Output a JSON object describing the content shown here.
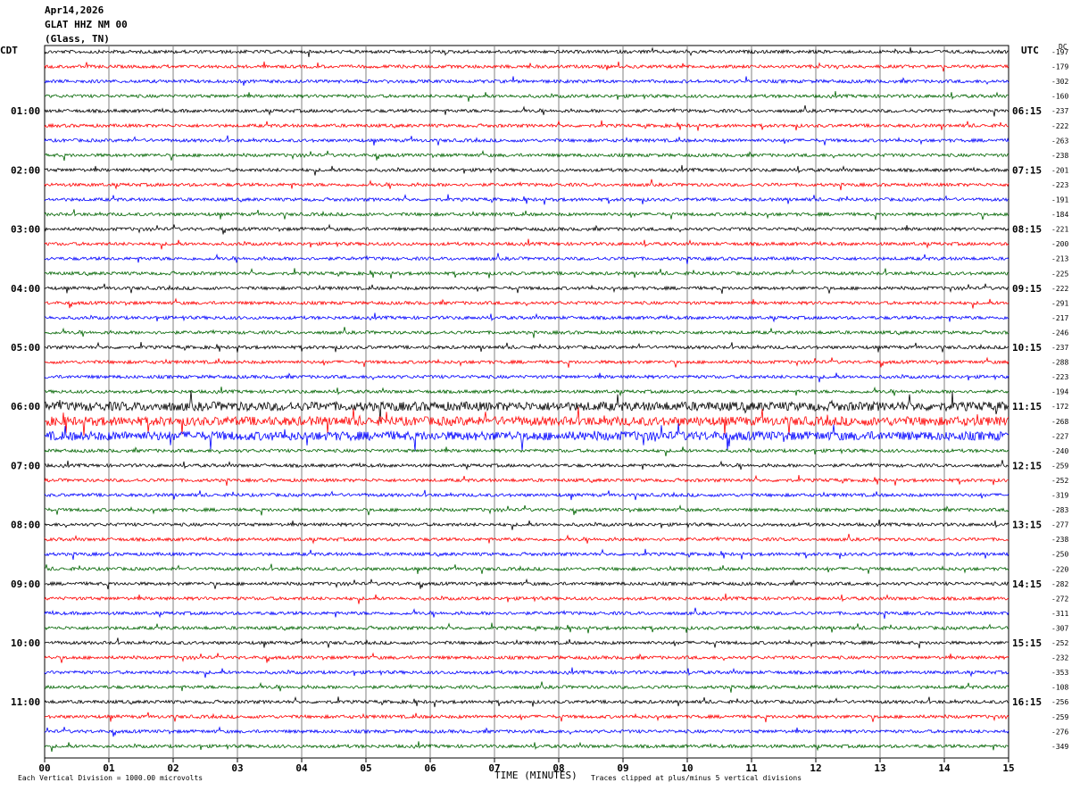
{
  "header": {
    "date": "Apr14,2026",
    "station": "GLAT HHZ NM 00",
    "location": "(Glass, TN)"
  },
  "labels": {
    "left_tz": "CDT",
    "right_tz": "UTC",
    "dc": "DC"
  },
  "footer": {
    "xlabel": "TIME (MINUTES)",
    "scale_note": "Each Vertical Division = 1000.00 microvolts",
    "clip_note": "Traces clipped at plus/minus 5 vertical divisions"
  },
  "colors": {
    "cycle": [
      "#000000",
      "#ff0000",
      "#0000ff",
      "#006400"
    ],
    "grid": "#808080"
  },
  "chart_data": {
    "type": "line",
    "title": "GLAT HHZ NM 00",
    "xlabel": "TIME (MINUTES)",
    "xlim": [
      0,
      15
    ],
    "x_ticks": [
      "00",
      "01",
      "02",
      "03",
      "04",
      "05",
      "06",
      "07",
      "08",
      "09",
      "10",
      "11",
      "12",
      "13",
      "14",
      "15"
    ],
    "line_count": 48,
    "left_hour_labels": [
      "01:00",
      "02:00",
      "03:00",
      "04:00",
      "05:00",
      "06:00",
      "07:00",
      "08:00",
      "09:00",
      "10:00",
      "11:00"
    ],
    "right_hour_labels": [
      "06:15",
      "07:15",
      "08:15",
      "09:15",
      "10:15",
      "11:15",
      "12:15",
      "13:15",
      "14:15",
      "15:15",
      "16:15"
    ],
    "dc_offsets": [
      "-197",
      "-179",
      "-302",
      "-160",
      "-237",
      "-222",
      "-263",
      "-238",
      "-201",
      "-223",
      "-191",
      "-184",
      "-221",
      "-200",
      "-213",
      "-225",
      "-222",
      "-291",
      "-217",
      "-246",
      "-237",
      "-288",
      "-223",
      "-194",
      "-172",
      "-268",
      "-227",
      "-240",
      "-259",
      "-252",
      "-319",
      "-283",
      "-277",
      "-238",
      "-250",
      "-220",
      "-282",
      "-272",
      "-311",
      "-307",
      "-252",
      "-232",
      "-353",
      "-108",
      "-256",
      "-259",
      "-276",
      "-349"
    ]
  }
}
